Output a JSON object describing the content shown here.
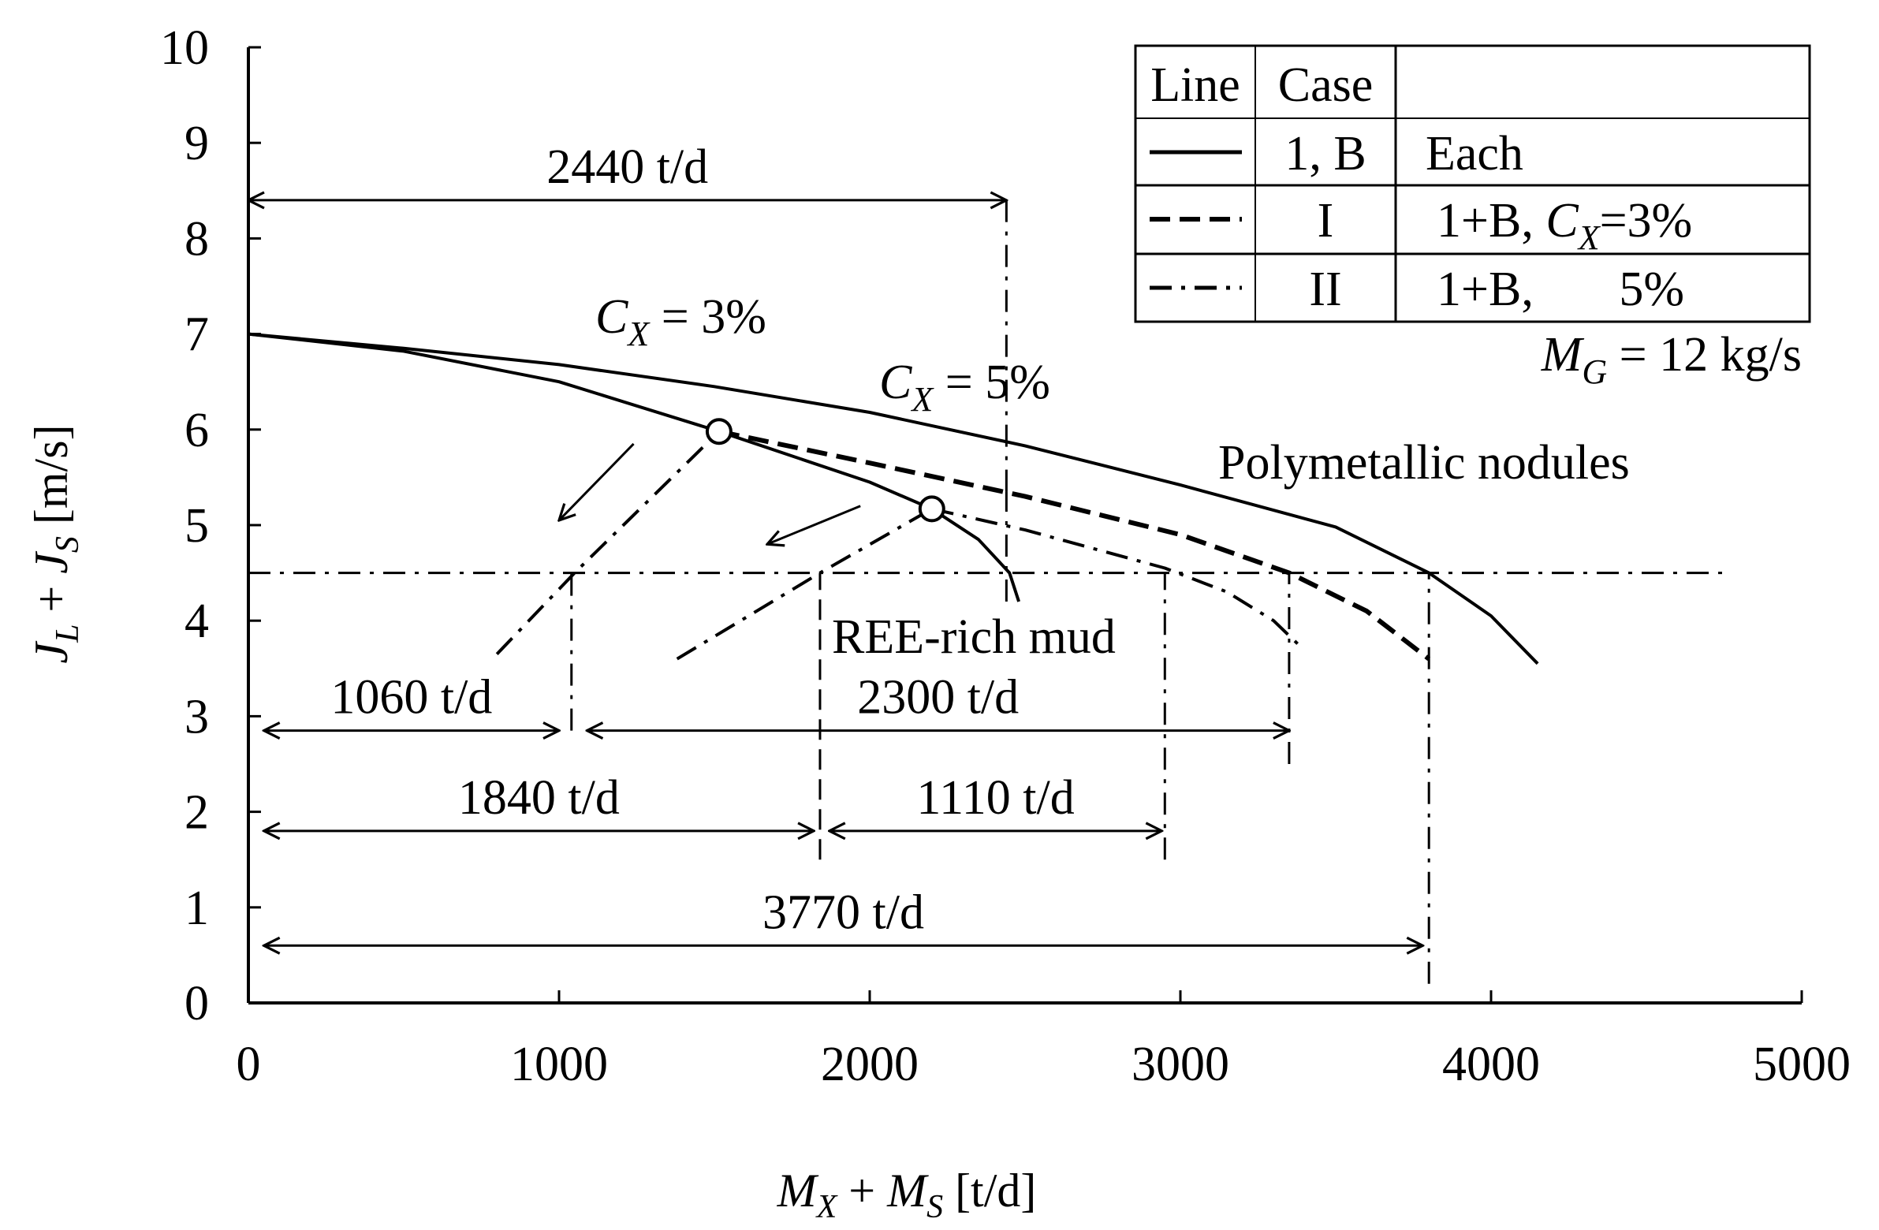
{
  "chart_data": {
    "type": "line",
    "title": "",
    "xlabel": "M_X + M_S [t/d]",
    "ylabel": "J_L + J_S [m/s]",
    "xlim": [
      0,
      5000
    ],
    "ylim": [
      0,
      10
    ],
    "xticks": [
      0,
      1000,
      2000,
      3000,
      4000,
      5000
    ],
    "yticks": [
      0,
      1,
      2,
      3,
      4,
      5,
      6,
      7,
      8,
      9,
      10
    ],
    "grid": false,
    "legend_position": "top-right",
    "legend": {
      "headers": [
        "Line",
        "Case",
        ""
      ],
      "rows": [
        {
          "style": "solid",
          "case": "1, B",
          "desc": "Each"
        },
        {
          "style": "dashed",
          "case": "I",
          "desc": "1+B, C_X=3%"
        },
        {
          "style": "dashdot",
          "case": "II",
          "desc": "1+B, 5%"
        }
      ],
      "note": "M_G = 12 kg/s"
    },
    "series": [
      {
        "style": "solid",
        "points": [
          [
            0,
            7.0
          ],
          [
            500,
            6.85
          ],
          [
            1000,
            6.68
          ],
          [
            1500,
            6.45
          ],
          [
            2000,
            6.18
          ],
          [
            2500,
            5.83
          ],
          [
            3000,
            5.42
          ],
          [
            3500,
            4.98
          ],
          [
            3800,
            4.5
          ],
          [
            4000,
            4.05
          ],
          [
            4150,
            3.55
          ]
        ]
      },
      {
        "style": "solid",
        "points": [
          [
            0,
            7.0
          ],
          [
            500,
            6.82
          ],
          [
            1000,
            6.5
          ],
          [
            1515,
            5.98
          ],
          [
            2000,
            5.45
          ],
          [
            2200,
            5.17
          ],
          [
            2350,
            4.85
          ],
          [
            2450,
            4.5
          ],
          [
            2480,
            4.2
          ]
        ]
      },
      {
        "style": "dashed",
        "points": [
          [
            1515,
            5.98
          ],
          [
            2000,
            5.65
          ],
          [
            2500,
            5.3
          ],
          [
            3000,
            4.9
          ],
          [
            3350,
            4.5
          ],
          [
            3600,
            4.1
          ],
          [
            3800,
            3.6
          ]
        ]
      },
      {
        "style": "dashdot",
        "points": [
          [
            2200,
            5.17
          ],
          [
            2500,
            4.95
          ],
          [
            2950,
            4.55
          ],
          [
            3150,
            4.3
          ],
          [
            3300,
            4.0
          ],
          [
            3380,
            3.75
          ]
        ]
      },
      {
        "style": "dashdot",
        "points": [
          [
            800,
            3.65
          ],
          [
            1050,
            4.5
          ],
          [
            1515,
            5.98
          ]
        ]
      },
      {
        "style": "dashdot",
        "points": [
          [
            1380,
            3.6
          ],
          [
            1840,
            4.5
          ],
          [
            2200,
            5.17
          ]
        ]
      }
    ],
    "markers": [
      [
        1515,
        5.98
      ],
      [
        2200,
        5.17
      ]
    ],
    "reference_lines": {
      "horizontal_y": 4.5,
      "horizontal_x_range": [
        0,
        4750
      ],
      "verticals": [
        {
          "x": 2440,
          "y_range": [
            5.35,
            8.5
          ],
          "style": "dashdot"
        },
        {
          "x": 2440,
          "y_range": [
            4.2,
            5.35
          ],
          "style": "dashdot"
        },
        {
          "x": 1040,
          "y_range": [
            2.85,
            4.5
          ],
          "style": "dashdot"
        },
        {
          "x": 1840,
          "y_range": [
            1.5,
            4.5
          ],
          "style": "dashed"
        },
        {
          "x": 2950,
          "y_range": [
            1.5,
            4.5
          ],
          "style": "dashdot"
        },
        {
          "x": 3350,
          "y_range": [
            2.5,
            4.5
          ],
          "style": "dashdot"
        },
        {
          "x": 3800,
          "y_range": [
            0.2,
            4.5
          ],
          "style": "dashdot"
        }
      ]
    },
    "dimension_arrows": [
      {
        "label": "2440 t/d",
        "x1": 0,
        "x2": 2440,
        "y": 8.4
      },
      {
        "label": "1060 t/d",
        "x1": 50,
        "x2": 1000,
        "y": 2.85
      },
      {
        "label": "2300 t/d",
        "x1": 1090,
        "x2": 3350,
        "y": 2.85
      },
      {
        "label": "1840 t/d",
        "x1": 50,
        "x2": 1820,
        "y": 1.8
      },
      {
        "label": "1110 t/d",
        "x1": 1870,
        "x2": 2940,
        "y": 1.8
      },
      {
        "label": "3770 t/d",
        "x1": 50,
        "x2": 3780,
        "y": 0.6
      }
    ],
    "direction_arrows": [
      {
        "from": [
          1240,
          5.85
        ],
        "to": [
          1000,
          5.05
        ]
      },
      {
        "from": [
          1970,
          5.2
        ],
        "to": [
          1670,
          4.8
        ]
      }
    ],
    "annotations": {
      "cx3": "C_X = 3%",
      "cx5": "C_X = 5%",
      "polymetallic": "Polymetallic nodules",
      "ree": "REE-rich mud"
    }
  }
}
